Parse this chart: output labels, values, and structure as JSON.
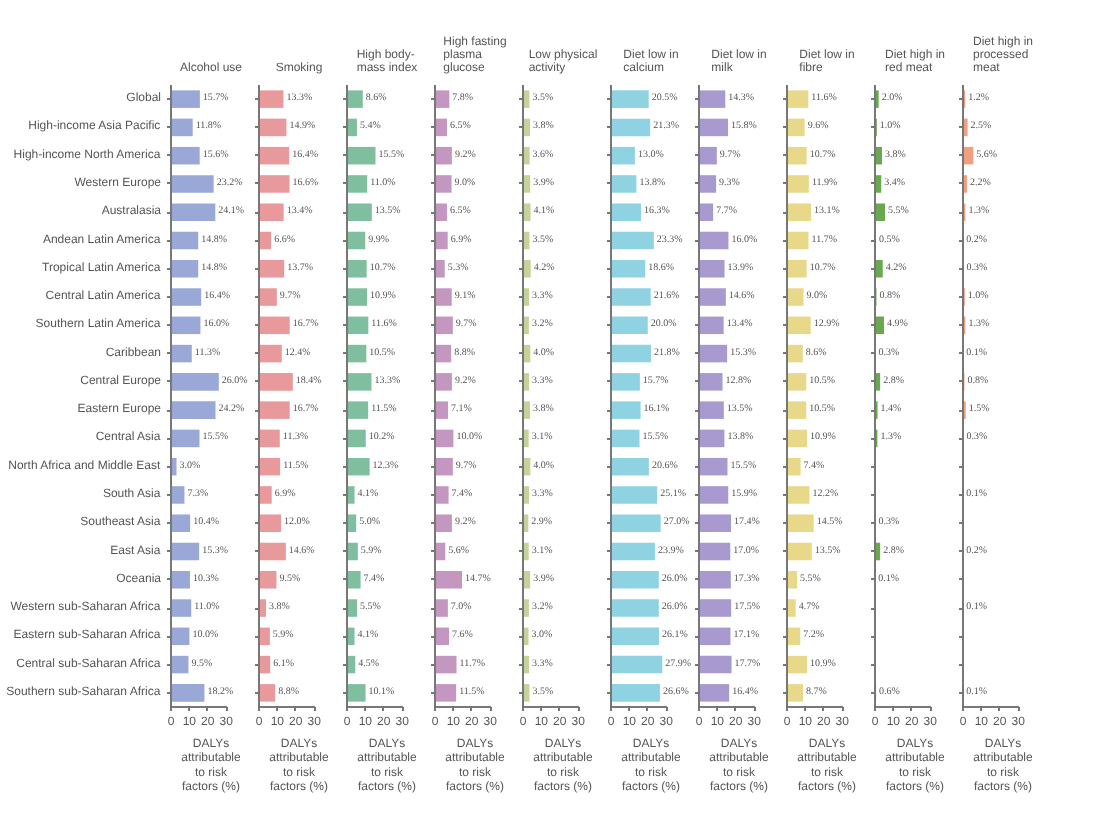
{
  "chart_data": [
    {
      "type": "bar",
      "orientation": "horizontal",
      "title": "Alcohol use",
      "color": "#9aa8d8",
      "xlim": [
        0,
        30
      ],
      "xticks": [
        0,
        10,
        20,
        30
      ],
      "xlabel": "DALYs attributable to risk factors (%)",
      "categories": [
        "Global",
        "High-income Asia Pacific",
        "High-income North America",
        "Western Europe",
        "Australasia",
        "Andean Latin America",
        "Tropical Latin America",
        "Central Latin America",
        "Southern Latin America",
        "Caribbean",
        "Central Europe",
        "Eastern Europe",
        "Central Asia",
        "North Africa and Middle East",
        "South Asia",
        "Southeast Asia",
        "East Asia",
        "Oceania",
        "Western sub-Saharan Africa",
        "Eastern sub-Saharan Africa",
        "Central sub-Saharan Africa",
        "Southern sub-Saharan Africa"
      ],
      "values": [
        15.7,
        11.8,
        15.6,
        23.2,
        24.1,
        14.8,
        14.8,
        16.4,
        16.0,
        11.3,
        26.0,
        24.2,
        15.5,
        3.0,
        7.3,
        10.4,
        15.3,
        10.3,
        11.0,
        10.0,
        9.5,
        18.2
      ],
      "value_labels": [
        "15.7%",
        "11.8%",
        "15.6%",
        "23.2%",
        "24.1%",
        "14.8%",
        "14.8%",
        "16.4%",
        "16.0%",
        "11.3%",
        "26.0%",
        "24.2%",
        "15.5%",
        "3.0%",
        "7.3%",
        "10.4%",
        "15.3%",
        "10.3%",
        "11.0%",
        "10.0%",
        "9.5%",
        "18.2%"
      ]
    },
    {
      "type": "bar",
      "orientation": "horizontal",
      "title": "Smoking",
      "color": "#e8999b",
      "xlim": [
        0,
        30
      ],
      "xticks": [
        0,
        10,
        20,
        30
      ],
      "xlabel": "DALYs attributable to risk factors (%)",
      "tick_labels": "x",
      "categories": [
        null,
        null,
        null,
        null,
        null,
        null,
        null,
        null,
        null,
        null,
        null,
        null,
        null,
        null,
        null,
        null,
        null,
        null,
        null,
        null,
        null,
        null
      ],
      "values": [
        13.3,
        14.9,
        16.4,
        16.6,
        13.4,
        6.6,
        13.7,
        9.7,
        16.7,
        12.4,
        18.4,
        16.7,
        11.3,
        11.5,
        6.9,
        12.0,
        14.6,
        9.5,
        3.8,
        5.9,
        6.1,
        8.8
      ],
      "value_labels": [
        "13.3%",
        "14.9%",
        "16.4%",
        "16.6%",
        "13.4%",
        "6.6%",
        "13.7%",
        "9.7%",
        "16.7%",
        "12.4%",
        "18.4%",
        "16.7%",
        "11.3%",
        "11.5%",
        "6.9%",
        "12.0%",
        "14.6%",
        "9.5%",
        "3.8%",
        "5.9%",
        "6.1%",
        "8.8%"
      ]
    },
    {
      "type": "bar",
      "orientation": "horizontal",
      "title": "High body-mass index",
      "color": "#7fbfa0",
      "xlim": [
        0,
        30
      ],
      "xticks": [
        0,
        10,
        20,
        30
      ],
      "xlabel": "DALYs attributable to risk factors (%)",
      "tick_labels": "x",
      "categories": [
        null,
        null,
        null,
        null,
        null,
        null,
        null,
        null,
        null,
        null,
        null,
        null,
        null,
        null,
        null,
        null,
        null,
        null,
        null,
        null,
        null,
        null
      ],
      "values": [
        8.6,
        5.4,
        15.5,
        11.0,
        13.5,
        9.9,
        10.7,
        10.9,
        11.6,
        10.5,
        13.3,
        11.5,
        10.2,
        12.3,
        4.1,
        5.0,
        5.9,
        7.4,
        5.5,
        4.1,
        4.5,
        10.1
      ],
      "value_labels": [
        "8.6%",
        "5.4%",
        "15.5%",
        "11.0%",
        "13.5%",
        "9.9%",
        "10.7%",
        "10.9%",
        "11.6%",
        "10.5%",
        "13.3%",
        "11.5%",
        "10.2%",
        "12.3%",
        "4.1%",
        "5.0%",
        "5.9%",
        "7.4%",
        "5.5%",
        "4.1%",
        "4.5%",
        "10.1%"
      ]
    },
    {
      "type": "bar",
      "orientation": "horizontal",
      "title": "High fasting plasma glucose",
      "color": "#c497c0",
      "xlim": [
        0,
        30
      ],
      "xticks": [
        0,
        10,
        20,
        30
      ],
      "xlabel": "DALYs attributable to risk factors (%)",
      "tick_labels": "x",
      "categories": [
        null,
        null,
        null,
        null,
        null,
        null,
        null,
        null,
        null,
        null,
        null,
        null,
        null,
        null,
        null,
        null,
        null,
        null,
        null,
        null,
        null,
        null
      ],
      "values": [
        7.8,
        6.5,
        9.2,
        9.0,
        6.5,
        6.9,
        5.3,
        9.1,
        9.7,
        8.8,
        9.2,
        7.1,
        10.0,
        9.7,
        7.4,
        9.2,
        5.6,
        14.7,
        7.0,
        7.6,
        11.7,
        11.5
      ],
      "value_labels": [
        "7.8%",
        "6.5%",
        "9.2%",
        "9.0%",
        "6.5%",
        "6.9%",
        "5.3%",
        "9.1%",
        "9.7%",
        "8.8%",
        "9.2%",
        "7.1%",
        "10.0%",
        "9.7%",
        "7.4%",
        "9.2%",
        "5.6%",
        "14.7%",
        "7.0%",
        "7.6%",
        "11.7%",
        "11.5%"
      ]
    },
    {
      "type": "bar",
      "orientation": "horizontal",
      "title": "Low physical activity",
      "color": "#c5d39a",
      "xlim": [
        0,
        30
      ],
      "xticks": [
        0,
        10,
        20,
        30
      ],
      "xlabel": "DALYs attributable to risk factors (%)",
      "tick_labels": "x",
      "categories": [
        null,
        null,
        null,
        null,
        null,
        null,
        null,
        null,
        null,
        null,
        null,
        null,
        null,
        null,
        null,
        null,
        null,
        null,
        null,
        null,
        null,
        null
      ],
      "values": [
        3.5,
        3.8,
        3.6,
        3.9,
        4.1,
        3.5,
        4.2,
        3.3,
        3.2,
        4.0,
        3.3,
        3.8,
        3.1,
        4.0,
        3.3,
        2.9,
        3.1,
        3.9,
        3.2,
        3.0,
        3.3,
        3.5
      ],
      "value_labels": [
        "3.5%",
        "3.8%",
        "3.6%",
        "3.9%",
        "4.1%",
        "3.5%",
        "4.2%",
        "3.3%",
        "3.2%",
        "4.0%",
        "3.3%",
        "3.8%",
        "3.1%",
        "4.0%",
        "3.3%",
        "2.9%",
        "3.1%",
        "3.9%",
        "3.2%",
        "3.0%",
        "3.3%",
        "3.5%"
      ]
    },
    {
      "type": "bar",
      "orientation": "horizontal",
      "title": "Diet low in calcium",
      "color": "#8fd3e3",
      "xlim": [
        0,
        30
      ],
      "xticks": [
        0,
        10,
        20,
        30
      ],
      "xlabel": "DALYs attributable to risk factors (%)",
      "tick_labels": "x",
      "categories": [
        null,
        null,
        null,
        null,
        null,
        null,
        null,
        null,
        null,
        null,
        null,
        null,
        null,
        null,
        null,
        null,
        null,
        null,
        null,
        null,
        null,
        null
      ],
      "values": [
        20.5,
        21.3,
        13.0,
        13.8,
        16.3,
        23.3,
        18.6,
        21.6,
        20.0,
        21.8,
        15.7,
        16.1,
        15.5,
        20.6,
        25.1,
        27.0,
        23.9,
        26.0,
        26.0,
        26.1,
        27.9,
        26.6
      ],
      "value_labels": [
        "20.5%",
        "21.3%",
        "13.0%",
        "13.8%",
        "16.3%",
        "23.3%",
        "18.6%",
        "21.6%",
        "20.0%",
        "21.8%",
        "15.7%",
        "16.1%",
        "15.5%",
        "20.6%",
        "25.1%",
        "27.0%",
        "23.9%",
        "26.0%",
        "26.0%",
        "26.1%",
        "27.9%",
        "26.6%"
      ]
    },
    {
      "type": "bar",
      "orientation": "horizontal",
      "title": "Diet low in milk",
      "color": "#a899cf",
      "xlim": [
        0,
        30
      ],
      "xticks": [
        0,
        10,
        20,
        30
      ],
      "xlabel": "DALYs attributable to risk factors (%)",
      "tick_labels": "x",
      "categories": [
        null,
        null,
        null,
        null,
        null,
        null,
        null,
        null,
        null,
        null,
        null,
        null,
        null,
        null,
        null,
        null,
        null,
        null,
        null,
        null,
        null,
        null
      ],
      "values": [
        14.3,
        15.8,
        9.7,
        9.3,
        7.7,
        16.0,
        13.9,
        14.6,
        13.4,
        15.3,
        12.8,
        13.5,
        13.8,
        15.5,
        15.9,
        17.4,
        17.0,
        17.3,
        17.5,
        17.1,
        17.7,
        16.4
      ],
      "value_labels": [
        "14.3%",
        "15.8%",
        "9.7%",
        "9.3%",
        "7.7%",
        "16.0%",
        "13.9%",
        "14.6%",
        "13.4%",
        "15.3%",
        "12.8%",
        "13.5%",
        "13.8%",
        "15.5%",
        "15.9%",
        "17.4%",
        "17.0%",
        "17.3%",
        "17.5%",
        "17.1%",
        "17.7%",
        "16.4%"
      ]
    },
    {
      "type": "bar",
      "orientation": "horizontal",
      "title": "Diet low in fibre",
      "color": "#e8d98a",
      "xlim": [
        0,
        30
      ],
      "xticks": [
        0,
        10,
        20,
        30
      ],
      "xlabel": "DALYs attributable to risk factors (%)",
      "tick_labels": "x",
      "categories": [
        null,
        null,
        null,
        null,
        null,
        null,
        null,
        null,
        null,
        null,
        null,
        null,
        null,
        null,
        null,
        null,
        null,
        null,
        null,
        null,
        null,
        null
      ],
      "values": [
        11.6,
        9.6,
        10.7,
        11.9,
        13.1,
        11.7,
        10.7,
        9.0,
        12.9,
        8.6,
        10.5,
        10.5,
        10.9,
        7.4,
        12.2,
        14.5,
        13.5,
        5.5,
        4.7,
        7.2,
        10.9,
        8.7
      ],
      "value_labels": [
        "11.6%",
        "9.6%",
        "10.7%",
        "11.9%",
        "13.1%",
        "11.7%",
        "10.7%",
        "9.0%",
        "12.9%",
        "8.6%",
        "10.5%",
        "10.5%",
        "10.9%",
        "7.4%",
        "12.2%",
        "14.5%",
        "13.5%",
        "5.5%",
        "4.7%",
        "7.2%",
        "10.9%",
        "8.7%"
      ]
    },
    {
      "type": "bar",
      "orientation": "horizontal",
      "title": "Diet high in red meat",
      "color": "#6aa84f",
      "xlim": [
        0,
        30
      ],
      "xticks": [
        0,
        10,
        20,
        30
      ],
      "xlabel": "DALYs attributable to risk factors (%)",
      "tick_labels": "x",
      "categories": [
        null,
        null,
        null,
        null,
        null,
        null,
        null,
        null,
        null,
        null,
        null,
        null,
        null,
        null,
        null,
        null,
        null,
        null,
        null,
        null,
        null,
        null
      ],
      "values": [
        2.0,
        1.0,
        3.8,
        3.4,
        5.5,
        0.5,
        4.2,
        0.8,
        4.9,
        0.3,
        2.8,
        1.4,
        1.3,
        null,
        null,
        0.3,
        2.8,
        0.1,
        null,
        null,
        null,
        0.6
      ],
      "value_labels": [
        "2.0%",
        "1.0%",
        "3.8%",
        "3.4%",
        "5.5%",
        "0.5%",
        "4.2%",
        "0.8%",
        "4.9%",
        "0.3%",
        "2.8%",
        "1.4%",
        "1.3%",
        null,
        null,
        "0.3%",
        "2.8%",
        "0.1%",
        null,
        null,
        null,
        "0.6%"
      ]
    },
    {
      "type": "bar",
      "orientation": "horizontal",
      "title": "Diet high in processed meat",
      "color": "#f0a080",
      "xlim": [
        0,
        30
      ],
      "xticks": [
        0,
        10,
        20,
        30
      ],
      "xlabel": "DALYs attributable to risk factors (%)",
      "tick_labels": "x",
      "categories": [
        null,
        null,
        null,
        null,
        null,
        null,
        null,
        null,
        null,
        null,
        null,
        null,
        null,
        null,
        null,
        null,
        null,
        null,
        null,
        null,
        null,
        null
      ],
      "values": [
        1.2,
        2.5,
        5.6,
        2.2,
        1.3,
        0.2,
        0.3,
        1.0,
        1.3,
        0.1,
        0.8,
        1.5,
        0.3,
        null,
        0.1,
        null,
        0.2,
        null,
        0.1,
        null,
        null,
        0.1
      ],
      "value_labels": [
        "1.2%",
        "2.5%",
        "5.6%",
        "2.2%",
        "1.3%",
        "0.2%",
        "0.3%",
        "1.0%",
        "1.3%",
        "0.1%",
        "0.8%",
        "1.5%",
        "0.3%",
        null,
        "0.1%",
        null,
        "0.2%",
        null,
        "0.1%",
        null,
        null,
        "0.1%"
      ]
    }
  ]
}
